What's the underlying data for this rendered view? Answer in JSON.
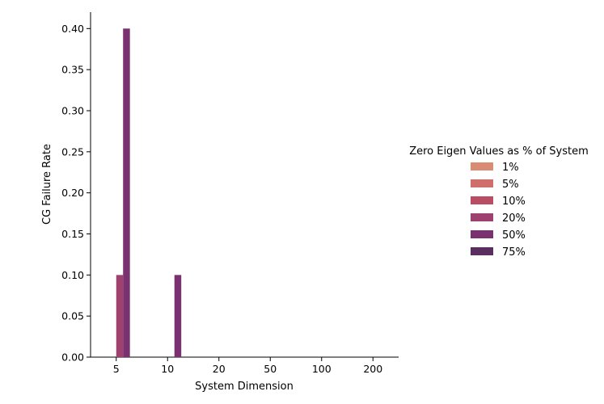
{
  "chart_data": {
    "type": "bar",
    "categories": [
      "5",
      "10",
      "20",
      "50",
      "100",
      "200"
    ],
    "xlabel": "System Dimension",
    "ylabel": "CG Failure Rate",
    "ylim": [
      0,
      0.42
    ],
    "yticks": [
      "0.00",
      "0.05",
      "0.10",
      "0.15",
      "0.20",
      "0.25",
      "0.30",
      "0.35",
      "0.40"
    ],
    "grid": false,
    "legend": {
      "title": "Zero Eigen Values as % of System",
      "placement": "right"
    },
    "series": [
      {
        "name": "1%",
        "color": "#d98b73",
        "values": [
          0,
          0,
          0,
          0,
          0,
          0
        ]
      },
      {
        "name": "5%",
        "color": "#cf6e6a",
        "values": [
          0,
          0,
          0,
          0,
          0,
          0
        ]
      },
      {
        "name": "10%",
        "color": "#b84d63",
        "values": [
          0,
          0,
          0,
          0,
          0,
          0
        ]
      },
      {
        "name": "20%",
        "color": "#9e416f",
        "values": [
          0.1,
          0,
          0,
          0,
          0,
          0
        ]
      },
      {
        "name": "50%",
        "color": "#7a3170",
        "values": [
          0.4,
          0.1,
          0,
          0,
          0,
          0
        ]
      },
      {
        "name": "75%",
        "color": "#5a2e5e",
        "values": [
          0,
          0,
          0,
          0,
          0,
          0
        ]
      }
    ]
  }
}
